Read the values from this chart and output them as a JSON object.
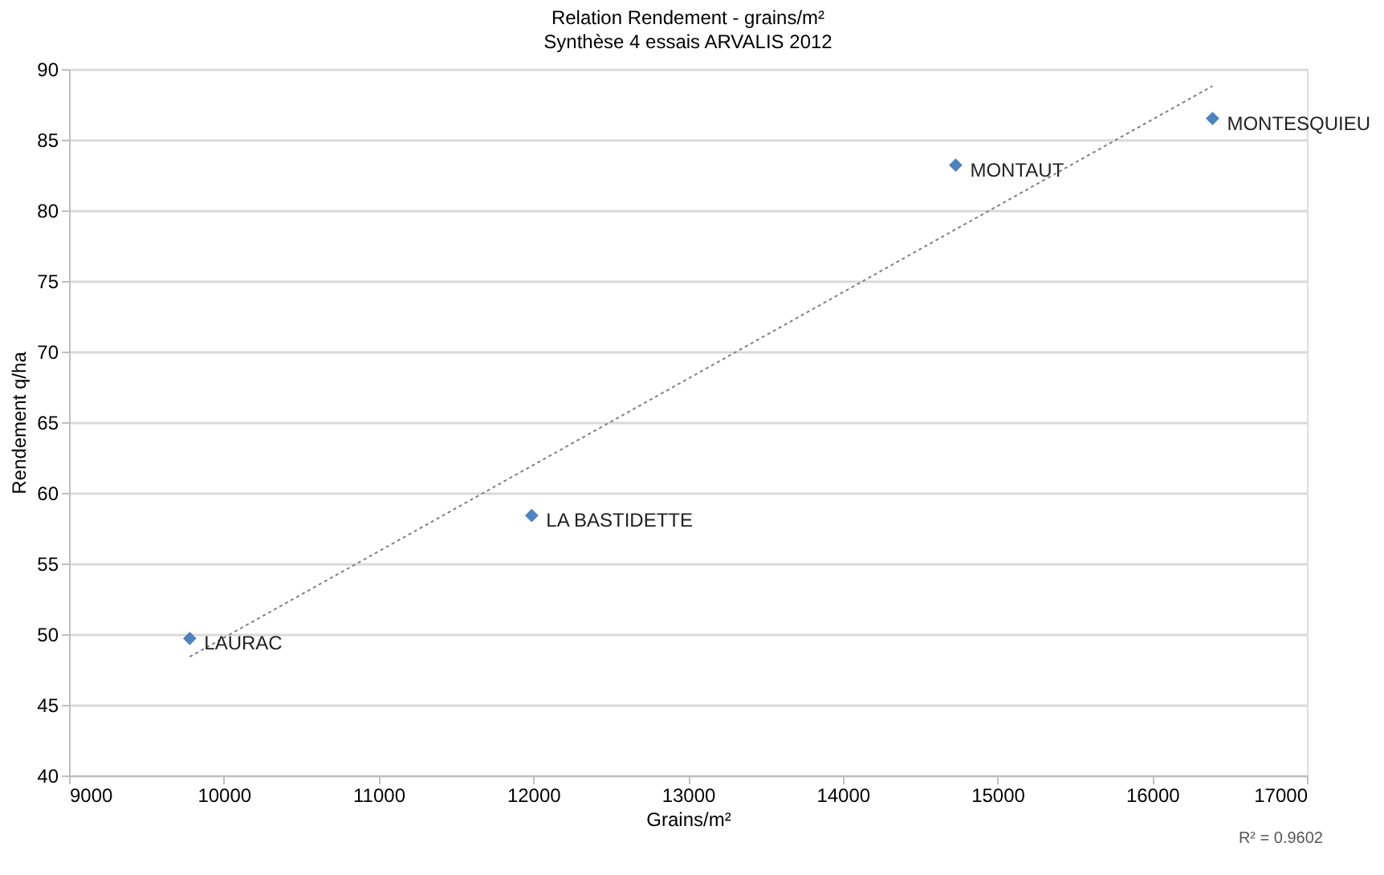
{
  "chart_data": {
    "type": "scatter",
    "title": "Relation Rendement - grains/m²",
    "subtitle": "Synthèse 4 essais ARVALIS 2012",
    "xlabel": "Grains/m²",
    "ylabel": "Rendement q/ha",
    "xlim": [
      9000,
      17000
    ],
    "xticks": [
      9000,
      10000,
      11000,
      12000,
      13000,
      14000,
      15000,
      16000,
      17000
    ],
    "ylim": [
      40,
      90
    ],
    "yticks": [
      40,
      45,
      50,
      55,
      60,
      65,
      70,
      75,
      80,
      85,
      90
    ],
    "grid": "y",
    "marker": "diamond",
    "series": [
      {
        "type": "scatter",
        "color": "#4f81bd",
        "x": [
          9780,
          11990,
          14730,
          16390
        ],
        "values": [
          49.7,
          58.4,
          83.2,
          86.5
        ]
      },
      {
        "type": "line",
        "color": "#808080",
        "line_style": "dotted",
        "marker": "none",
        "x": [
          9780,
          16390
        ],
        "values": [
          48.4,
          88.8
        ]
      }
    ],
    "annotations": [
      {
        "text": "LAURAC",
        "x": 9780,
        "y": 49.7
      },
      {
        "text": "LA BASTIDETTE",
        "x": 11990,
        "y": 58.4
      },
      {
        "text": "MONTAUT",
        "x": 14730,
        "y": 83.2
      },
      {
        "text": "MONTESQUIEU",
        "x": 16390,
        "y": 86.5
      },
      "R² = 0.9602"
    ]
  }
}
